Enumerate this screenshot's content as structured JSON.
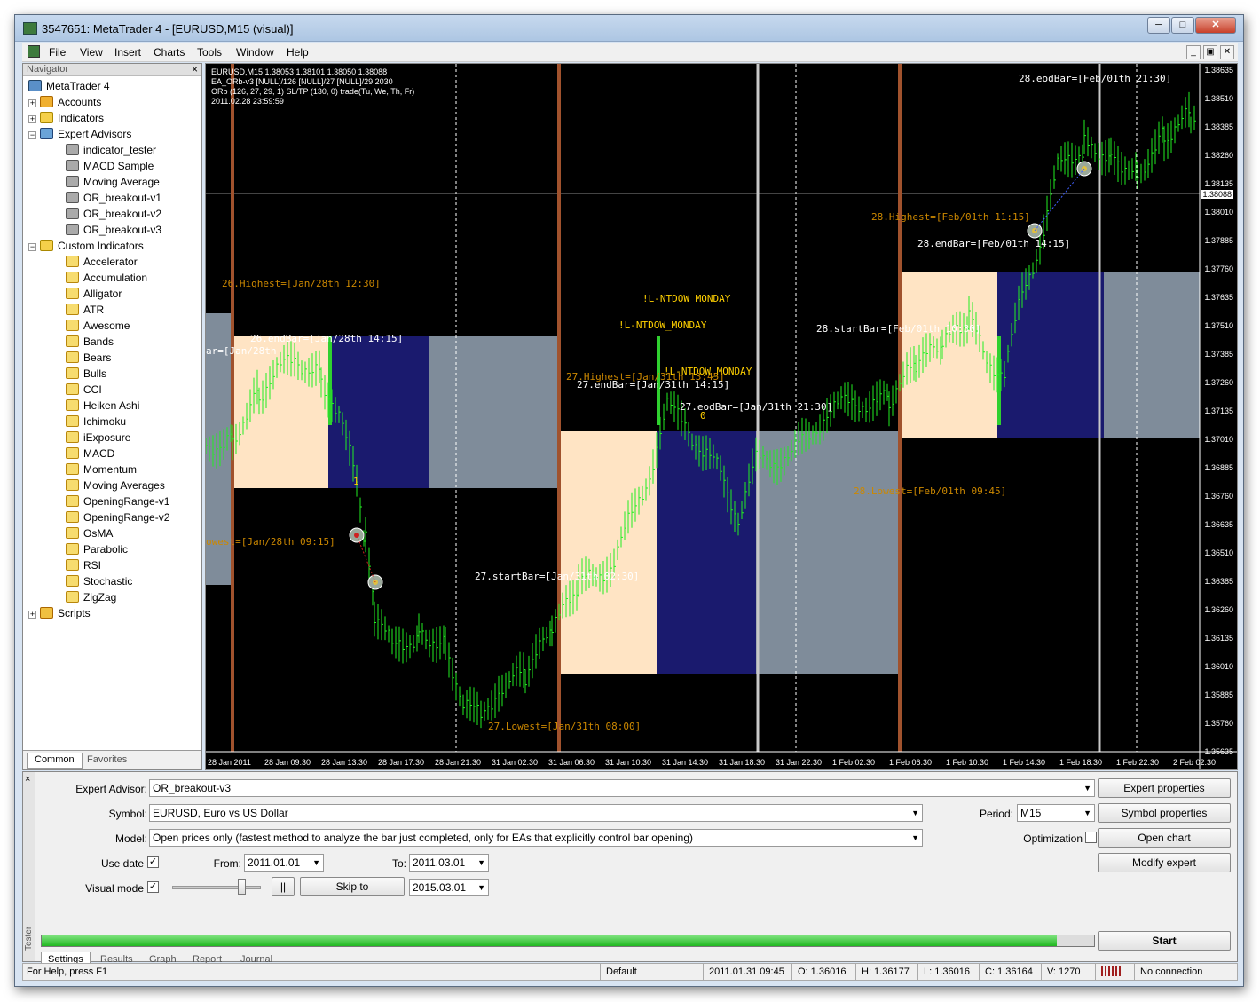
{
  "window": {
    "title": "3547651: MetaTrader 4 - [EURUSD,M15 (visual)]"
  },
  "menu": [
    "File",
    "View",
    "Insert",
    "Charts",
    "Tools",
    "Window",
    "Help"
  ],
  "navigator": {
    "title": "Navigator",
    "root": "MetaTrader 4",
    "groups": [
      {
        "label": "Accounts"
      },
      {
        "label": "Indicators"
      },
      {
        "label": "Expert Advisors"
      },
      {
        "label": "Custom Indicators"
      },
      {
        "label": "Scripts"
      }
    ],
    "expert_advisors": [
      "indicator_tester",
      "MACD Sample",
      "Moving Average",
      "OR_breakout-v1",
      "OR_breakout-v2",
      "OR_breakout-v3"
    ],
    "custom_indicators": [
      "Accelerator",
      "Accumulation",
      "Alligator",
      "ATR",
      "Awesome",
      "Bands",
      "Bears",
      "Bulls",
      "CCI",
      "Heiken Ashi",
      "Ichimoku",
      "iExposure",
      "MACD",
      "Momentum",
      "Moving Averages",
      "OpeningRange-v1",
      "OpeningRange-v2",
      "OsMA",
      "Parabolic",
      "RSI",
      "Stochastic",
      "ZigZag"
    ],
    "tabs": [
      "Common",
      "Favorites"
    ]
  },
  "chart": {
    "info": [
      "EURUSD,M15  1.38053 1.38101 1.38050 1.38088",
      "EA_ORb-v3  [NULL]/126 [NULL]/27 [NULL]/29 2030",
      "ORb (126, 27, 29, 1) SL/TP (130, 0) trade(Tu, We, Th, Fr)",
      "2011.02.28 23:59:59"
    ],
    "price_ticks": [
      "1.38635",
      "1.38510",
      "1.38385",
      "1.38260",
      "1.38135",
      "1.38010",
      "1.37885",
      "1.37760",
      "1.37635",
      "1.37510",
      "1.37385",
      "1.37260",
      "1.37135",
      "1.37010",
      "1.36885",
      "1.36760",
      "1.36635",
      "1.36510",
      "1.36385",
      "1.36260",
      "1.36135",
      "1.36010",
      "1.35885",
      "1.35760",
      "1.35635"
    ],
    "current_price": "1.38088",
    "time_ticks": [
      "28 Jan 2011",
      "28 Jan 09:30",
      "28 Jan 13:30",
      "28 Jan 17:30",
      "28 Jan 21:30",
      "31 Jan 02:30",
      "31 Jan 06:30",
      "31 Jan 10:30",
      "31 Jan 14:30",
      "31 Jan 18:30",
      "31 Jan 22:30",
      "1 Feb 02:30",
      "1 Feb 06:30",
      "1 Feb 10:30",
      "1 Feb 14:30",
      "1 Feb 18:30",
      "1 Feb 22:30",
      "2 Feb 02:30"
    ],
    "labels": {
      "l1": "28.eodBar=[Feb/01th 21:30]",
      "l2": "28.Highest=[Feb/01th 11:15]",
      "l3": "28.endBar=[Feb/01th 14:15]",
      "l4": "28.startBar=[Feb/01th 10:30]",
      "l5": "26.Highest=[Jan/28th 12:30]",
      "l6": "26.endBar=[Jan/28th 14:15]",
      "l7": "ar=[Jan/28th",
      "l8": "owest=[Jan/28th 09:15]",
      "l9": "!L-NTDOW_MONDAY",
      "l10": "!L-NTDOW_MONDAY",
      "l11": "!L-NTDOW_MONDAY",
      "l12": "27.Highest=[Jan/31th 13:45]",
      "l13": "27.endBar=[Jan/31th 14:15]",
      "l14": "27.eodBar=[Jan/31th 21:30]",
      "l15": "0",
      "l16": "28.Lowest=[Feb/01th 09:45]",
      "l17": "27.startBar=[Jan/31th 02:30]",
      "l18": "27.Lowest=[Jan/31th 08:00]",
      "l19": "1"
    }
  },
  "tester": {
    "ea_label": "Expert Advisor:",
    "ea_value": "OR_breakout-v3",
    "symbol_label": "Symbol:",
    "symbol_value": "EURUSD, Euro vs US Dollar",
    "model_label": "Model:",
    "model_value": "Open prices only (fastest method to analyze the bar just completed, only for EAs that explicitly control bar opening)",
    "period_label": "Period:",
    "period_value": "M15",
    "use_date": "Use date",
    "from_label": "From:",
    "from_value": "2011.01.01",
    "to_label": "To:",
    "to_value": "2011.03.01",
    "visual_mode": "Visual mode",
    "pause": "||",
    "skip_to": "Skip to",
    "skip_value": "2015.03.01",
    "optimization": "Optimization",
    "buttons": {
      "expert_properties": "Expert properties",
      "symbol_properties": "Symbol properties",
      "open_chart": "Open chart",
      "modify_expert": "Modify expert",
      "start": "Start"
    },
    "progress": 0.965,
    "tabs": [
      "Settings",
      "Results",
      "Graph",
      "Report",
      "Journal"
    ],
    "side": "Tester"
  },
  "status": {
    "help": "For Help, press F1",
    "profile": "Default",
    "time": "2011.01.31 09:45",
    "open": "O: 1.36016",
    "high": "H: 1.36177",
    "low": "L: 1.36016",
    "close": "C: 1.36164",
    "volume": "V: 1270",
    "conn": "No connection"
  }
}
